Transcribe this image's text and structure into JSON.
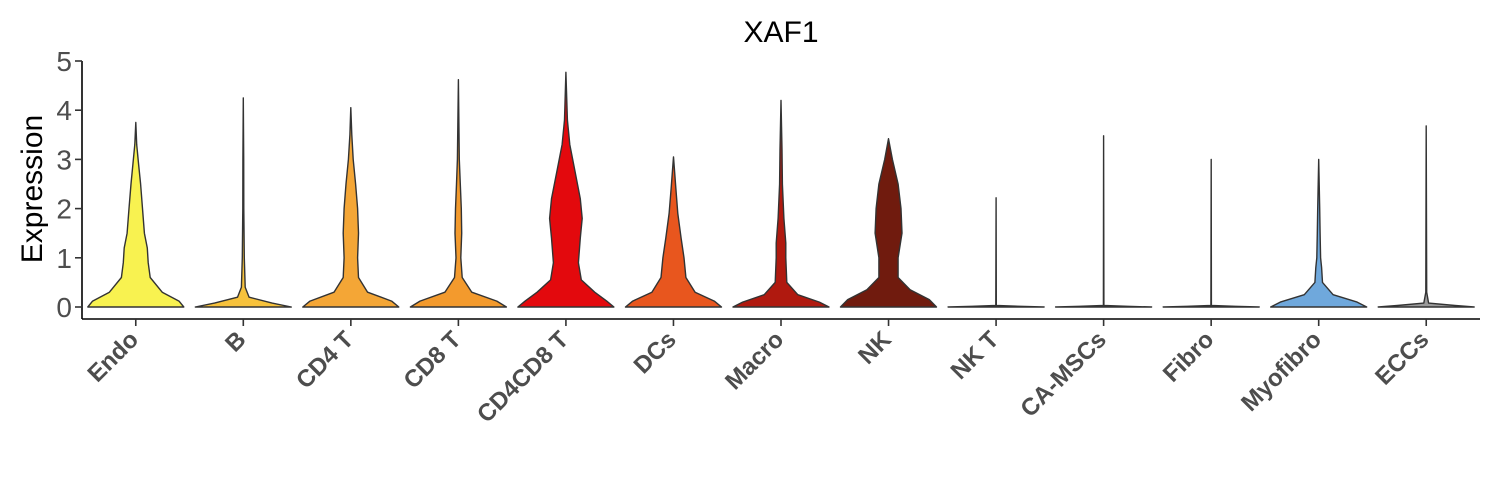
{
  "chart_data": {
    "type": "violin",
    "title": "XAF1",
    "xlabel": "",
    "ylabel": "Expression",
    "ylim": [
      -0.25,
      5
    ],
    "yticks": [
      0,
      1,
      2,
      3,
      4,
      5
    ],
    "ytick_labels": [
      "0",
      "1",
      "2",
      "3",
      "4",
      "5"
    ],
    "grid": false,
    "legend": "none",
    "categories": [
      "Endo",
      "B",
      "CD4 T",
      "CD8 T",
      "CD4CD8 T",
      "DCs",
      "Macro",
      "NK",
      "NK T",
      "CA-MSCs",
      "Fibro",
      "Myofibro",
      "ECCs"
    ],
    "series": [
      {
        "category": "Endo",
        "color": "#F8F250",
        "max": 3.75,
        "profile": [
          [
            0,
            1.0
          ],
          [
            0.12,
            0.9
          ],
          [
            0.3,
            0.55
          ],
          [
            0.6,
            0.3
          ],
          [
            0.9,
            0.26
          ],
          [
            1.2,
            0.24
          ],
          [
            1.5,
            0.18
          ],
          [
            2.0,
            0.14
          ],
          [
            2.5,
            0.1
          ],
          [
            2.9,
            0.06
          ],
          [
            3.3,
            0.02
          ],
          [
            3.75,
            0.0
          ]
        ]
      },
      {
        "category": "B",
        "color": "#F7C23C",
        "max": 4.25,
        "profile": [
          [
            0,
            1.0
          ],
          [
            0.08,
            0.6
          ],
          [
            0.2,
            0.12
          ],
          [
            0.4,
            0.04
          ],
          [
            1.0,
            0.02
          ],
          [
            2.0,
            0.01
          ],
          [
            3.0,
            0.008
          ],
          [
            4.25,
            0.0
          ]
        ]
      },
      {
        "category": "CD4 T",
        "color": "#F4A636",
        "max": 4.05,
        "profile": [
          [
            0,
            1.0
          ],
          [
            0.12,
            0.85
          ],
          [
            0.3,
            0.35
          ],
          [
            0.6,
            0.16
          ],
          [
            1.0,
            0.14
          ],
          [
            1.5,
            0.16
          ],
          [
            2.0,
            0.14
          ],
          [
            2.5,
            0.1
          ],
          [
            3.0,
            0.05
          ],
          [
            3.5,
            0.02
          ],
          [
            4.05,
            0.0
          ]
        ]
      },
      {
        "category": "CD8 T",
        "color": "#F39A2D",
        "max": 4.62,
        "profile": [
          [
            0,
            1.0
          ],
          [
            0.12,
            0.8
          ],
          [
            0.3,
            0.28
          ],
          [
            0.6,
            0.08
          ],
          [
            1.0,
            0.05
          ],
          [
            1.5,
            0.07
          ],
          [
            2.0,
            0.06
          ],
          [
            2.5,
            0.04
          ],
          [
            3.0,
            0.02
          ],
          [
            4.62,
            0.0
          ]
        ]
      },
      {
        "category": "CD4CD8 T",
        "color": "#E3090D",
        "max": 4.77,
        "profile": [
          [
            0,
            1.0
          ],
          [
            0.12,
            0.85
          ],
          [
            0.3,
            0.6
          ],
          [
            0.55,
            0.32
          ],
          [
            0.9,
            0.26
          ],
          [
            1.4,
            0.3
          ],
          [
            1.8,
            0.34
          ],
          [
            2.2,
            0.3
          ],
          [
            2.8,
            0.18
          ],
          [
            3.3,
            0.08
          ],
          [
            3.8,
            0.03
          ],
          [
            4.77,
            0.0
          ]
        ]
      },
      {
        "category": "DCs",
        "color": "#E8561E",
        "max": 3.05,
        "profile": [
          [
            0,
            1.0
          ],
          [
            0.12,
            0.85
          ],
          [
            0.3,
            0.45
          ],
          [
            0.6,
            0.26
          ],
          [
            1.0,
            0.22
          ],
          [
            1.4,
            0.16
          ],
          [
            1.9,
            0.09
          ],
          [
            2.4,
            0.05
          ],
          [
            3.05,
            0.0
          ]
        ]
      },
      {
        "category": "Macro",
        "color": "#B0190F",
        "max": 4.2,
        "profile": [
          [
            0,
            1.0
          ],
          [
            0.1,
            0.8
          ],
          [
            0.25,
            0.35
          ],
          [
            0.5,
            0.12
          ],
          [
            1.0,
            0.1
          ],
          [
            1.3,
            0.1
          ],
          [
            1.8,
            0.06
          ],
          [
            2.5,
            0.03
          ],
          [
            3.2,
            0.02
          ],
          [
            4.2,
            0.0
          ]
        ]
      },
      {
        "category": "NK",
        "color": "#701B0E",
        "max": 3.42,
        "profile": [
          [
            0,
            1.0
          ],
          [
            0.15,
            0.85
          ],
          [
            0.35,
            0.45
          ],
          [
            0.6,
            0.2
          ],
          [
            1.0,
            0.2
          ],
          [
            1.5,
            0.28
          ],
          [
            2.0,
            0.26
          ],
          [
            2.5,
            0.2
          ],
          [
            3.0,
            0.08
          ],
          [
            3.42,
            0.0
          ]
        ]
      },
      {
        "category": "NK T",
        "color": "#9A9A9A",
        "max": 2.22,
        "profile": [
          [
            0,
            1.0
          ],
          [
            0.015,
            0.5
          ],
          [
            0.03,
            0.005
          ],
          [
            2.22,
            0.0
          ]
        ]
      },
      {
        "category": "CA-MSCs",
        "color": "#9A9A9A",
        "max": 3.48,
        "profile": [
          [
            0,
            1.0
          ],
          [
            0.015,
            0.5
          ],
          [
            0.03,
            0.005
          ],
          [
            3.48,
            0.0
          ]
        ]
      },
      {
        "category": "Fibro",
        "color": "#9A9A9A",
        "max": 3.0,
        "profile": [
          [
            0,
            1.0
          ],
          [
            0.015,
            0.5
          ],
          [
            0.03,
            0.005
          ],
          [
            3.0,
            0.0
          ]
        ]
      },
      {
        "category": "Myofibro",
        "color": "#6FA8DC",
        "max": 3.0,
        "profile": [
          [
            0,
            1.0
          ],
          [
            0.1,
            0.8
          ],
          [
            0.25,
            0.3
          ],
          [
            0.5,
            0.08
          ],
          [
            0.8,
            0.06
          ],
          [
            1.0,
            0.04
          ],
          [
            1.5,
            0.03
          ],
          [
            2.0,
            0.02
          ],
          [
            3.0,
            0.0
          ]
        ]
      },
      {
        "category": "ECCs",
        "color": "#9A9A9A",
        "max": 3.68,
        "profile": [
          [
            0,
            1.0
          ],
          [
            0.03,
            0.6
          ],
          [
            0.08,
            0.05
          ],
          [
            0.3,
            0.01
          ],
          [
            3.68,
            0.0
          ]
        ]
      }
    ]
  }
}
